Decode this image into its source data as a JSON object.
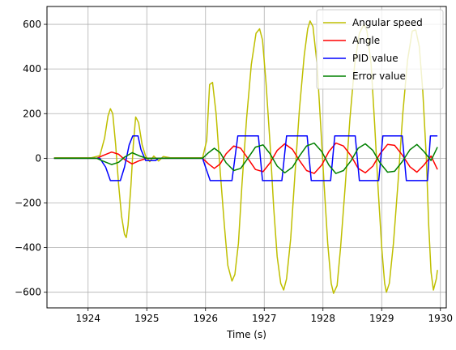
{
  "chart_data": {
    "type": "line",
    "title": "",
    "xlabel": "Time (s)",
    "ylabel": "",
    "xlim": [
      1923.3,
      1930.1
    ],
    "ylim": [
      -670,
      680
    ],
    "xticks": [
      1924,
      1925,
      1926,
      1927,
      1928,
      1929,
      1930
    ],
    "yticks": [
      -600,
      -400,
      -200,
      0,
      200,
      400,
      600
    ],
    "grid": true,
    "legend": "top-right",
    "series": [
      {
        "name": "Angular speed",
        "color": "#bfbf00",
        "points": [
          [
            1923.42,
            2
          ],
          [
            1924.05,
            2
          ],
          [
            1924.2,
            12
          ],
          [
            1924.28,
            90
          ],
          [
            1924.34,
            190
          ],
          [
            1924.38,
            222
          ],
          [
            1924.42,
            200
          ],
          [
            1924.47,
            60
          ],
          [
            1924.52,
            -120
          ],
          [
            1924.57,
            -260
          ],
          [
            1924.62,
            -340
          ],
          [
            1924.65,
            -355
          ],
          [
            1924.68,
            -300
          ],
          [
            1924.73,
            -120
          ],
          [
            1924.77,
            60
          ],
          [
            1924.81,
            185
          ],
          [
            1924.86,
            160
          ],
          [
            1924.92,
            60
          ],
          [
            1924.98,
            10
          ],
          [
            1925.05,
            -15
          ],
          [
            1925.12,
            10
          ],
          [
            1925.2,
            -12
          ],
          [
            1925.28,
            8
          ],
          [
            1925.4,
            2
          ],
          [
            1925.95,
            2
          ],
          [
            1926.02,
            80
          ],
          [
            1926.07,
            330
          ],
          [
            1926.12,
            340
          ],
          [
            1926.18,
            200
          ],
          [
            1926.25,
            -60
          ],
          [
            1926.32,
            -300
          ],
          [
            1926.38,
            -480
          ],
          [
            1926.45,
            -550
          ],
          [
            1926.5,
            -520
          ],
          [
            1926.56,
            -380
          ],
          [
            1926.62,
            -120
          ],
          [
            1926.7,
            180
          ],
          [
            1926.78,
            420
          ],
          [
            1926.86,
            560
          ],
          [
            1926.92,
            580
          ],
          [
            1926.97,
            530
          ],
          [
            1927.03,
            340
          ],
          [
            1927.1,
            60
          ],
          [
            1927.16,
            -220
          ],
          [
            1927.22,
            -440
          ],
          [
            1927.28,
            -560
          ],
          [
            1927.33,
            -590
          ],
          [
            1927.38,
            -540
          ],
          [
            1927.45,
            -360
          ],
          [
            1927.52,
            -80
          ],
          [
            1927.6,
            220
          ],
          [
            1927.68,
            460
          ],
          [
            1927.74,
            580
          ],
          [
            1927.78,
            615
          ],
          [
            1927.83,
            590
          ],
          [
            1927.9,
            420
          ],
          [
            1927.96,
            150
          ],
          [
            1928.02,
            -120
          ],
          [
            1928.08,
            -380
          ],
          [
            1928.14,
            -560
          ],
          [
            1928.18,
            -605
          ],
          [
            1928.24,
            -570
          ],
          [
            1928.3,
            -400
          ],
          [
            1928.38,
            -120
          ],
          [
            1928.46,
            180
          ],
          [
            1928.54,
            420
          ],
          [
            1928.62,
            560
          ],
          [
            1928.7,
            600
          ],
          [
            1928.75,
            570
          ],
          [
            1928.82,
            420
          ],
          [
            1928.88,
            150
          ],
          [
            1928.94,
            -140
          ],
          [
            1929.0,
            -400
          ],
          [
            1929.05,
            -560
          ],
          [
            1929.08,
            -600
          ],
          [
            1929.13,
            -560
          ],
          [
            1929.2,
            -380
          ],
          [
            1929.28,
            -100
          ],
          [
            1929.36,
            200
          ],
          [
            1929.44,
            440
          ],
          [
            1929.52,
            570
          ],
          [
            1929.58,
            575
          ],
          [
            1929.64,
            500
          ],
          [
            1929.7,
            300
          ],
          [
            1929.76,
            0
          ],
          [
            1929.8,
            -300
          ],
          [
            1929.84,
            -510
          ],
          [
            1929.88,
            -590
          ],
          [
            1929.93,
            -540
          ],
          [
            1929.95,
            -500
          ]
        ]
      },
      {
        "name": "Angle",
        "color": "#ff0000",
        "points": [
          [
            1923.42,
            0
          ],
          [
            1924.15,
            0
          ],
          [
            1924.25,
            12
          ],
          [
            1924.4,
            28
          ],
          [
            1924.52,
            18
          ],
          [
            1924.62,
            -5
          ],
          [
            1924.75,
            -25
          ],
          [
            1924.88,
            -10
          ],
          [
            1925.0,
            0
          ],
          [
            1925.95,
            0
          ],
          [
            1926.05,
            -25
          ],
          [
            1926.15,
            -45
          ],
          [
            1926.25,
            -25
          ],
          [
            1926.35,
            20
          ],
          [
            1926.48,
            55
          ],
          [
            1926.6,
            45
          ],
          [
            1926.72,
            0
          ],
          [
            1926.85,
            -50
          ],
          [
            1926.98,
            -60
          ],
          [
            1927.1,
            -20
          ],
          [
            1927.22,
            35
          ],
          [
            1927.35,
            65
          ],
          [
            1927.48,
            40
          ],
          [
            1927.6,
            -10
          ],
          [
            1927.72,
            -55
          ],
          [
            1927.85,
            -68
          ],
          [
            1927.98,
            -30
          ],
          [
            1928.1,
            30
          ],
          [
            1928.22,
            68
          ],
          [
            1928.35,
            55
          ],
          [
            1928.48,
            10
          ],
          [
            1928.6,
            -45
          ],
          [
            1928.72,
            -65
          ],
          [
            1928.85,
            -35
          ],
          [
            1928.97,
            20
          ],
          [
            1929.1,
            62
          ],
          [
            1929.22,
            58
          ],
          [
            1929.35,
            15
          ],
          [
            1929.48,
            -38
          ],
          [
            1929.6,
            -62
          ],
          [
            1929.72,
            -30
          ],
          [
            1929.84,
            10
          ],
          [
            1929.95,
            -50
          ]
        ]
      },
      {
        "name": "PID value",
        "color": "#0000ff",
        "points": [
          [
            1923.42,
            0
          ],
          [
            1924.2,
            0
          ],
          [
            1924.3,
            -40
          ],
          [
            1924.38,
            -100
          ],
          [
            1924.55,
            -100
          ],
          [
            1924.62,
            -40
          ],
          [
            1924.7,
            60
          ],
          [
            1924.76,
            100
          ],
          [
            1924.85,
            100
          ],
          [
            1924.9,
            40
          ],
          [
            1924.98,
            -10
          ],
          [
            1925.15,
            -10
          ],
          [
            1925.2,
            0
          ],
          [
            1925.95,
            0
          ],
          [
            1926.0,
            -40
          ],
          [
            1926.08,
            -100
          ],
          [
            1926.45,
            -100
          ],
          [
            1926.55,
            100
          ],
          [
            1926.9,
            100
          ],
          [
            1926.97,
            -100
          ],
          [
            1927.3,
            -100
          ],
          [
            1927.38,
            100
          ],
          [
            1927.73,
            100
          ],
          [
            1927.8,
            -100
          ],
          [
            1928.13,
            -100
          ],
          [
            1928.2,
            100
          ],
          [
            1928.55,
            100
          ],
          [
            1928.62,
            -100
          ],
          [
            1928.95,
            -100
          ],
          [
            1929.02,
            100
          ],
          [
            1929.35,
            100
          ],
          [
            1929.42,
            -100
          ],
          [
            1929.78,
            -100
          ],
          [
            1929.83,
            100
          ],
          [
            1929.95,
            100
          ]
        ]
      },
      {
        "name": "Error value",
        "color": "#008000",
        "points": [
          [
            1923.42,
            0
          ],
          [
            1924.15,
            0
          ],
          [
            1924.25,
            -12
          ],
          [
            1924.4,
            -28
          ],
          [
            1924.52,
            -18
          ],
          [
            1924.62,
            5
          ],
          [
            1924.75,
            25
          ],
          [
            1924.88,
            10
          ],
          [
            1925.0,
            0
          ],
          [
            1925.95,
            0
          ],
          [
            1926.05,
            25
          ],
          [
            1926.15,
            45
          ],
          [
            1926.25,
            25
          ],
          [
            1926.35,
            -20
          ],
          [
            1926.48,
            -55
          ],
          [
            1926.6,
            -45
          ],
          [
            1926.72,
            0
          ],
          [
            1926.85,
            50
          ],
          [
            1926.98,
            60
          ],
          [
            1927.1,
            20
          ],
          [
            1927.22,
            -35
          ],
          [
            1927.35,
            -65
          ],
          [
            1927.48,
            -40
          ],
          [
            1927.6,
            10
          ],
          [
            1927.72,
            55
          ],
          [
            1927.85,
            68
          ],
          [
            1927.98,
            30
          ],
          [
            1928.1,
            -30
          ],
          [
            1928.22,
            -68
          ],
          [
            1928.35,
            -55
          ],
          [
            1928.48,
            -10
          ],
          [
            1928.6,
            45
          ],
          [
            1928.72,
            65
          ],
          [
            1928.85,
            35
          ],
          [
            1928.97,
            -20
          ],
          [
            1929.1,
            -62
          ],
          [
            1929.22,
            -58
          ],
          [
            1929.35,
            -15
          ],
          [
            1929.48,
            38
          ],
          [
            1929.6,
            62
          ],
          [
            1929.72,
            30
          ],
          [
            1929.84,
            -10
          ],
          [
            1929.95,
            50
          ]
        ]
      }
    ]
  }
}
